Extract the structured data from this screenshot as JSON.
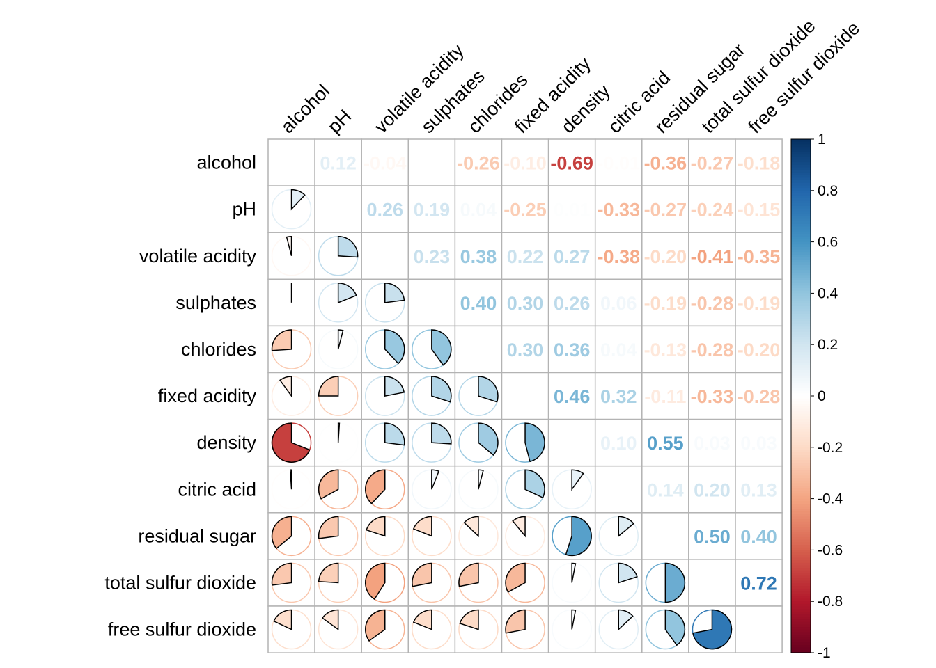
{
  "chart_data": {
    "type": "heatmap",
    "variant": "correlation matrix: upper triangle numbers, lower triangle pies",
    "variables": [
      "alcohol",
      "pH",
      "volatile acidity",
      "sulphates",
      "chlorides",
      "fixed acidity",
      "density",
      "citric acid",
      "residual sugar",
      "total sulfur dioxide",
      "free sulfur dioxide"
    ],
    "upper_labels": [
      [
        "",
        "0.12",
        "-0.04",
        "0.00",
        "-0.26",
        "-0.10",
        "-0.69",
        "-0.01",
        "-0.36",
        "-0.27",
        "-0.18"
      ],
      [
        "",
        "",
        "0.26",
        "0.19",
        "0.04",
        "-0.25",
        "0.01",
        "-0.33",
        "-0.27",
        "-0.24",
        "-0.15"
      ],
      [
        "",
        "",
        "",
        "0.23",
        "0.38",
        "0.22",
        "0.27",
        "-0.38",
        "-0.20",
        "-0.41",
        "-0.35"
      ],
      [
        "",
        "",
        "",
        "",
        "0.40",
        "0.30",
        "0.26",
        "0.06",
        "-0.19",
        "-0.28",
        "-0.19"
      ],
      [
        "",
        "",
        "",
        "",
        "",
        "0.30",
        "0.36",
        "0.04",
        "-0.13",
        "-0.28",
        "-0.20"
      ],
      [
        "",
        "",
        "",
        "",
        "",
        "",
        "0.46",
        "0.32",
        "-0.11",
        "-0.33",
        "-0.28"
      ],
      [
        "",
        "",
        "",
        "",
        "",
        "",
        "",
        "0.10",
        "0.55",
        "0.03",
        "0.03"
      ],
      [
        "",
        "",
        "",
        "",
        "",
        "",
        "",
        "",
        "0.14",
        "0.20",
        "0.13"
      ],
      [
        "",
        "",
        "",
        "",
        "",
        "",
        "",
        "",
        "",
        "0.50",
        "0.40"
      ],
      [
        "",
        "",
        "",
        "",
        "",
        "",
        "",
        "",
        "",
        "",
        "0.72"
      ],
      [
        "",
        "",
        "",
        "",
        "",
        "",
        "",
        "",
        "",
        "",
        ""
      ]
    ],
    "colorbar": {
      "range": [
        -1,
        1
      ],
      "ticks": [
        "1",
        "0.8",
        "0.6",
        "0.4",
        "0.2",
        "0",
        "-0.2",
        "-0.4",
        "-0.6",
        "-0.8",
        "-1"
      ]
    },
    "palette": [
      "#67001F",
      "#B2182B",
      "#D6604D",
      "#F4A582",
      "#FDDBC7",
      "#FFFFFF",
      "#D1E5F0",
      "#92C5DE",
      "#4393C3",
      "#2166AC",
      "#053061"
    ],
    "grid": true
  }
}
